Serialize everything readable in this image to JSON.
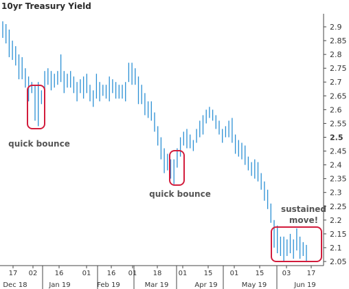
{
  "chart_data": {
    "type": "bar",
    "subtype": "high-low",
    "title": "10yr Treasury Yield",
    "ylim": [
      2.0,
      2.95
    ],
    "yticks": [
      "2.9",
      "2.85",
      "2.8",
      "2.75",
      "2.7",
      "2.65",
      "2.6",
      "2.55",
      "2.5",
      "2.45",
      "2.4",
      "2.35",
      "2.3",
      "2.25",
      "2.2",
      "2.15",
      "2.1",
      "2.05"
    ],
    "ytick_highlight": "2.5",
    "day_ticks": [
      "17",
      "02",
      "16",
      "01",
      "16",
      "01",
      "18",
      "01",
      "15",
      "01",
      "15",
      "03",
      "17"
    ],
    "month_labels": [
      "Dec 18",
      "Jan 19",
      "Feb 19",
      "Mar 19",
      "Apr 19",
      "May 19",
      "Jun 19"
    ],
    "series_color": "#2a8fd4",
    "high_low": [
      [
        2.92,
        2.86
      ],
      [
        2.91,
        2.84
      ],
      [
        2.89,
        2.79
      ],
      [
        2.85,
        2.78
      ],
      [
        2.83,
        2.76
      ],
      [
        2.8,
        2.71
      ],
      [
        2.79,
        2.71
      ],
      [
        2.75,
        2.68
      ],
      [
        2.72,
        2.63
      ],
      [
        2.7,
        2.66
      ],
      [
        2.69,
        2.56
      ],
      [
        2.7,
        2.54
      ],
      [
        2.67,
        2.62
      ],
      [
        2.74,
        2.66
      ],
      [
        2.75,
        2.69
      ],
      [
        2.74,
        2.67
      ],
      [
        2.73,
        2.68
      ],
      [
        2.74,
        2.69
      ],
      [
        2.8,
        2.7
      ],
      [
        2.74,
        2.66
      ],
      [
        2.73,
        2.68
      ],
      [
        2.74,
        2.68
      ],
      [
        2.72,
        2.66
      ],
      [
        2.7,
        2.63
      ],
      [
        2.71,
        2.66
      ],
      [
        2.72,
        2.64
      ],
      [
        2.73,
        2.66
      ],
      [
        2.69,
        2.63
      ],
      [
        2.67,
        2.61
      ],
      [
        2.73,
        2.64
      ],
      [
        2.7,
        2.63
      ],
      [
        2.69,
        2.65
      ],
      [
        2.69,
        2.64
      ],
      [
        2.72,
        2.63
      ],
      [
        2.71,
        2.66
      ],
      [
        2.7,
        2.64
      ],
      [
        2.69,
        2.64
      ],
      [
        2.69,
        2.64
      ],
      [
        2.7,
        2.63
      ],
      [
        2.77,
        2.7
      ],
      [
        2.77,
        2.69
      ],
      [
        2.75,
        2.69
      ],
      [
        2.72,
        2.62
      ],
      [
        2.69,
        2.62
      ],
      [
        2.66,
        2.58
      ],
      [
        2.63,
        2.57
      ],
      [
        2.63,
        2.56
      ],
      [
        2.59,
        2.52
      ],
      [
        2.54,
        2.47
      ],
      [
        2.5,
        2.42
      ],
      [
        2.46,
        2.37
      ],
      [
        2.44,
        2.38
      ],
      [
        2.42,
        2.35
      ],
      [
        2.42,
        2.33
      ],
      [
        2.46,
        2.39
      ],
      [
        2.5,
        2.43
      ],
      [
        2.52,
        2.47
      ],
      [
        2.53,
        2.46
      ],
      [
        2.51,
        2.46
      ],
      [
        2.49,
        2.45
      ],
      [
        2.53,
        2.48
      ],
      [
        2.56,
        2.5
      ],
      [
        2.58,
        2.51
      ],
      [
        2.6,
        2.55
      ],
      [
        2.61,
        2.57
      ],
      [
        2.6,
        2.56
      ],
      [
        2.58,
        2.53
      ],
      [
        2.56,
        2.51
      ],
      [
        2.53,
        2.48
      ],
      [
        2.54,
        2.5
      ],
      [
        2.56,
        2.5
      ],
      [
        2.57,
        2.48
      ],
      [
        2.51,
        2.44
      ],
      [
        2.49,
        2.43
      ],
      [
        2.48,
        2.42
      ],
      [
        2.47,
        2.4
      ],
      [
        2.43,
        2.38
      ],
      [
        2.41,
        2.36
      ],
      [
        2.42,
        2.35
      ],
      [
        2.41,
        2.34
      ],
      [
        2.37,
        2.31
      ],
      [
        2.34,
        2.27
      ],
      [
        2.31,
        2.24
      ],
      [
        2.26,
        2.19
      ],
      [
        2.2,
        2.1
      ],
      [
        2.18,
        2.08
      ],
      [
        2.14,
        2.07
      ],
      [
        2.14,
        2.05
      ],
      [
        2.13,
        2.07
      ],
      [
        2.15,
        2.08
      ],
      [
        2.13,
        2.06
      ],
      [
        2.17,
        2.09
      ],
      [
        2.14,
        2.06
      ],
      [
        2.12,
        2.07
      ],
      [
        2.11,
        2.05
      ]
    ],
    "annotations": [
      {
        "text": "quick bounce"
      },
      {
        "text": "quick bounce"
      },
      {
        "lines": [
          "sustained",
          "move!"
        ]
      }
    ],
    "grid": false,
    "annotation_color": "#d21b3b"
  }
}
